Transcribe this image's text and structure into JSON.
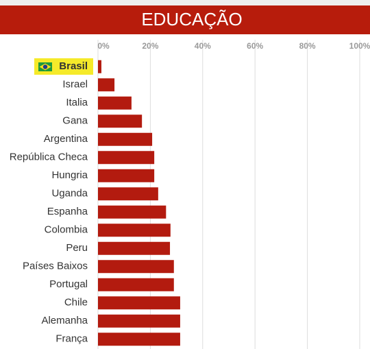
{
  "chart_data": {
    "type": "bar",
    "orientation": "horizontal",
    "title": "EDUCAÇÃO",
    "categories": [
      "Brasil",
      "Israel",
      "Italia",
      "Gana",
      "Argentina",
      "República Checa",
      "Hungria",
      "Uganda",
      "Espanha",
      "Colombia",
      "Peru",
      "Países Baixos",
      "Portugal",
      "Chile",
      "Alemanha",
      "França"
    ],
    "values": [
      1.3,
      6.3,
      12.8,
      16.8,
      20.7,
      21.5,
      21.5,
      23,
      26,
      27.7,
      27.5,
      29,
      29,
      31.4,
      31.4,
      31.4
    ],
    "color": "#b31b0f",
    "xlim": [
      0,
      100
    ],
    "xticks": [
      {
        "value": 0,
        "label": "0%"
      },
      {
        "value": 20,
        "label": "20%"
      },
      {
        "value": 40,
        "label": "40%"
      },
      {
        "value": 60,
        "label": "60%"
      },
      {
        "value": 80,
        "label": "80%"
      },
      {
        "value": 100,
        "label": "100%"
      }
    ],
    "grid": true
  }
}
